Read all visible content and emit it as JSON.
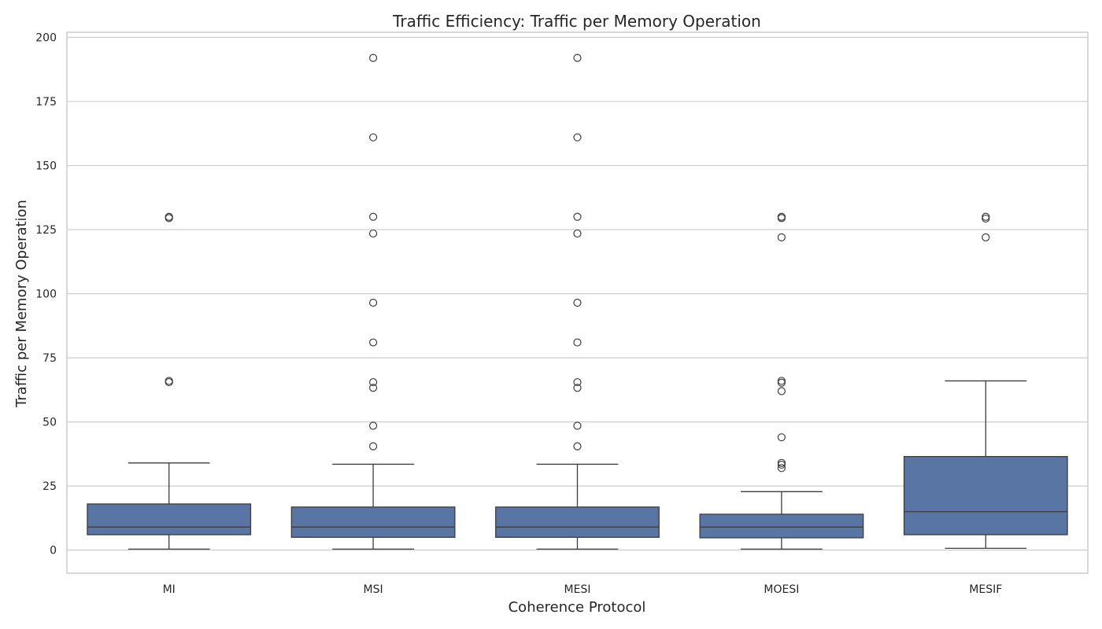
{
  "chart_data": {
    "type": "boxplot",
    "title": "Traffic Efficiency: Traffic per Memory Operation",
    "xlabel": "Coherence Protocol",
    "ylabel": "Traffic per Memory Operation",
    "ylim": [
      -9,
      202
    ],
    "yticks": [
      0,
      25,
      50,
      75,
      100,
      125,
      150,
      175,
      200
    ],
    "grid": true,
    "categories": [
      "MI",
      "MSI",
      "MESI",
      "MOESI",
      "MESIF"
    ],
    "boxes": [
      {
        "category": "MI",
        "whisker_low": 0.4,
        "q1": 6,
        "median": 9,
        "q3": 18,
        "whisker_high": 34,
        "outliers": [
          65.5,
          66,
          129.5,
          130
        ]
      },
      {
        "category": "MSI",
        "whisker_low": 0.4,
        "q1": 5,
        "median": 9,
        "q3": 16.8,
        "whisker_high": 33.5,
        "outliers": [
          40.5,
          48.5,
          63.3,
          65.5,
          81,
          96.5,
          123.5,
          130,
          161,
          192
        ]
      },
      {
        "category": "MESI",
        "whisker_low": 0.4,
        "q1": 5,
        "median": 9,
        "q3": 16.8,
        "whisker_high": 33.5,
        "outliers": [
          40.5,
          48.5,
          63.3,
          65.5,
          81,
          96.5,
          123.5,
          130,
          161,
          192
        ]
      },
      {
        "category": "MOESI",
        "whisker_low": 0.4,
        "q1": 4.8,
        "median": 9,
        "q3": 14,
        "whisker_high": 22.8,
        "outliers": [
          32,
          33.3,
          34,
          44,
          62,
          65.3,
          66,
          122,
          129.5,
          130
        ]
      },
      {
        "category": "MESIF",
        "whisker_low": 0.7,
        "q1": 6,
        "median": 15,
        "q3": 36.5,
        "whisker_high": 66,
        "outliers": [
          122,
          129.3,
          130
        ]
      }
    ],
    "colors": {
      "box_fill": "#5975a4",
      "line": "#3d3d3d",
      "grid": "#cccccc",
      "frame": "#cccccc"
    }
  }
}
